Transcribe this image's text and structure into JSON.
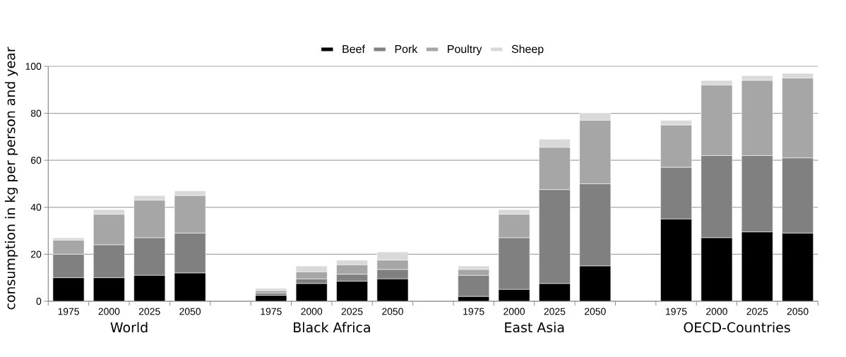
{
  "chart_data": {
    "type": "bar",
    "stacked": true,
    "ylabel": "consumption in kg per person and year",
    "categories": [
      "1975",
      "2000",
      "2025",
      "2050",
      null,
      "1975",
      "2000",
      "2025",
      "2050",
      null,
      "1975",
      "2000",
      "2025",
      "2050",
      null,
      "1975",
      "2000",
      "2025",
      "2050"
    ],
    "annotations": [
      "World",
      "Black Africa",
      "East Asia",
      "OECD-Countries"
    ],
    "series": [
      {
        "name": "Beef",
        "color": "#000000",
        "values": [
          10,
          10,
          11,
          12,
          null,
          2.5,
          7.5,
          8.5,
          9.5,
          null,
          2,
          5,
          7.5,
          15,
          null,
          35,
          27,
          29.5,
          29
        ]
      },
      {
        "name": "Pork",
        "color": "#808080",
        "values": [
          10,
          14,
          16,
          17,
          null,
          1,
          2,
          3,
          4,
          null,
          9,
          22,
          40,
          35,
          null,
          22,
          35,
          32.5,
          32
        ]
      },
      {
        "name": "Poultry",
        "color": "#a6a6a6",
        "values": [
          6,
          13,
          16,
          16,
          null,
          1,
          3,
          4,
          4,
          null,
          2.5,
          10,
          18,
          27,
          null,
          18,
          30,
          32,
          34
        ]
      },
      {
        "name": "Sheep",
        "color": "#d9d9d9",
        "values": [
          1,
          2,
          2,
          2,
          null,
          1,
          2.5,
          2,
          3.5,
          null,
          1.5,
          2,
          3.5,
          3,
          null,
          2,
          2,
          2,
          2
        ]
      }
    ],
    "ylim": [
      0,
      100
    ],
    "yticks": [
      0,
      20,
      40,
      60,
      80,
      100
    ],
    "grid": "y",
    "legend": "top"
  }
}
